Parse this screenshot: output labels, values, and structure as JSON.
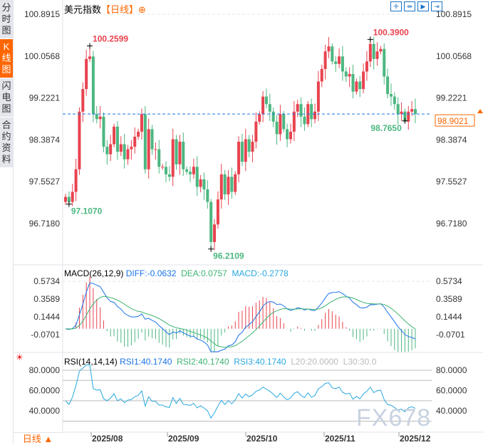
{
  "sidebar": {
    "tabs": [
      {
        "label": "分时图",
        "active": false
      },
      {
        "label": "K线图",
        "active": true
      },
      {
        "label": "闪电图",
        "active": false
      },
      {
        "label": "合约资料",
        "active": false
      }
    ]
  },
  "header": {
    "title": "美元指数",
    "period": "【日线】",
    "add_icon": "plus-circle-icon"
  },
  "toolbar": {
    "icons": [
      "crosshair-icon",
      "fit-range-icon",
      "play-icon",
      "scroll-end-icon"
    ]
  },
  "colors": {
    "up": "#e8434f",
    "down": "#4cb780",
    "accent": "#f60",
    "diff": "#1a73e8",
    "dea": "#3cb371",
    "rsi": "#29a8e0",
    "current": "#1a73e8"
  },
  "main": {
    "y_ticks": [
      "100.8915",
      "100.0568",
      "99.2221",
      "98.3874",
      "97.5527",
      "96.7180"
    ],
    "current_price": "98.9021",
    "annotations": [
      {
        "label": "100.2599",
        "type": "high"
      },
      {
        "label": "100.3900",
        "type": "high"
      },
      {
        "label": "97.1070",
        "type": "low"
      },
      {
        "label": "96.2109",
        "type": "low"
      },
      {
        "label": "98.7650",
        "type": "low"
      }
    ]
  },
  "macd": {
    "title": "MACD(26,12,9)",
    "diff": "DIFF:-0.0632",
    "dea": "DEA:0.0757",
    "macd": "MACD:-0.2778",
    "y_ticks": [
      "0.5734",
      "0.3589",
      "0.1444",
      "-0.0701"
    ]
  },
  "rsi": {
    "title": "RSI(14,14,14)",
    "rsi1": "RSI1:40.1740",
    "rsi2": "RSI2:40.1740",
    "rsi3": "RSI3:40.1740",
    "l20": "L20:20.0000",
    "l30": "L30:30.0",
    "y_ticks": [
      "80.0000",
      "60.0000",
      "40.0000"
    ],
    "settings_icon": "settings-sun-icon"
  },
  "xaxis": {
    "period_button": "日线 ▲",
    "labels": [
      "2025/08",
      "2025/09",
      "2025/10",
      "2025/11",
      "2025/12"
    ]
  },
  "watermark": "FX678",
  "chart_data": {
    "type": "candlestick",
    "ylim": [
      96.718,
      100.8915
    ],
    "closes": [
      97.25,
      97.15,
      97.35,
      97.8,
      98.95,
      99.4,
      100.0,
      100.05,
      98.9,
      98.8,
      98.85,
      98.25,
      98.1,
      98.3,
      98.65,
      98.15,
      98.3,
      98.0,
      98.2,
      98.25,
      98.45,
      98.55,
      98.9,
      97.8,
      98.6,
      98.2,
      98.2,
      97.85,
      97.85,
      97.7,
      97.65,
      98.4,
      97.9,
      98.35,
      97.8,
      97.75,
      97.7,
      97.85,
      97.45,
      97.6,
      97.4,
      97.15,
      96.35,
      96.7,
      97.2,
      97.7,
      97.3,
      97.65,
      97.35,
      97.7,
      98.35,
      97.95,
      98.4,
      98.15,
      98.35,
      98.75,
      98.9,
      99.25,
      99.1,
      98.95,
      98.75,
      98.5,
      98.9,
      98.6,
      98.4,
      98.55,
      98.95,
      99.1,
      98.85,
      98.7,
      99.1,
      98.8,
      98.95,
      99.55,
      99.8,
      100.15,
      100.25,
      99.95,
      99.9,
      100.05,
      99.75,
      99.65,
      99.7,
      99.35,
      99.55,
      99.4,
      99.75,
      99.95,
      100.3,
      100.0,
      100.15,
      100.2,
      99.65,
      99.3,
      99.25,
      99.1,
      98.9,
      98.95,
      98.75,
      98.95,
      99.0,
      98.9021
    ],
    "highs": {
      "7": 100.2599,
      "88": 100.39
    },
    "lows": {
      "1": 97.107,
      "42": 96.2109,
      "98": 98.765
    }
  }
}
